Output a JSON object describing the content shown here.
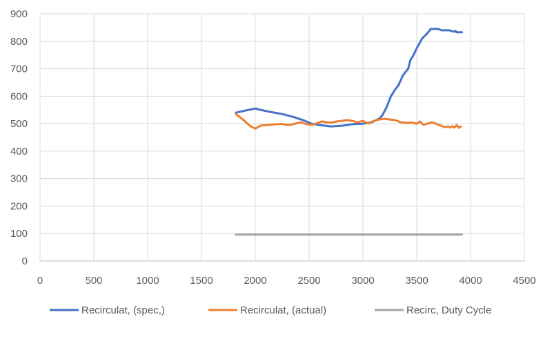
{
  "chart_data": {
    "type": "line",
    "title": "",
    "xlabel": "",
    "ylabel": "",
    "xlim": [
      0,
      4500
    ],
    "ylim": [
      0,
      900
    ],
    "x_ticks": [
      "0",
      "500",
      "1000",
      "1500",
      "2000",
      "2500",
      "3000",
      "3500",
      "4000",
      "4500"
    ],
    "y_ticks": [
      "0",
      "100",
      "200",
      "300",
      "400",
      "500",
      "600",
      "700",
      "800",
      "900"
    ],
    "grid": "vertical and horizontal",
    "legend_position": "bottom",
    "series": [
      {
        "name": "Recirculat, (spec,)",
        "color": "#4472c4",
        "points": [
          [
            1820,
            540
          ],
          [
            1900,
            547
          ],
          [
            2000,
            555
          ],
          [
            2050,
            550
          ],
          [
            2150,
            542
          ],
          [
            2250,
            535
          ],
          [
            2350,
            525
          ],
          [
            2450,
            512
          ],
          [
            2520,
            500
          ],
          [
            2600,
            495
          ],
          [
            2700,
            490
          ],
          [
            2800,
            492
          ],
          [
            2900,
            498
          ],
          [
            3000,
            500
          ],
          [
            3080,
            505
          ],
          [
            3150,
            518
          ],
          [
            3180,
            530
          ],
          [
            3220,
            560
          ],
          [
            3260,
            600
          ],
          [
            3300,
            625
          ],
          [
            3330,
            640
          ],
          [
            3370,
            675
          ],
          [
            3420,
            700
          ],
          [
            3440,
            730
          ],
          [
            3470,
            750
          ],
          [
            3500,
            775
          ],
          [
            3550,
            810
          ],
          [
            3600,
            830
          ],
          [
            3630,
            845
          ],
          [
            3700,
            845
          ],
          [
            3730,
            840
          ],
          [
            3800,
            840
          ],
          [
            3850,
            835
          ],
          [
            3860,
            838
          ],
          [
            3870,
            833
          ],
          [
            3920,
            833
          ]
        ]
      },
      {
        "name": "Recirculat, (actual)",
        "color": "#ed7d31",
        "points": [
          [
            1820,
            535
          ],
          [
            1900,
            510
          ],
          [
            1950,
            492
          ],
          [
            2000,
            482
          ],
          [
            2050,
            493
          ],
          [
            2100,
            495
          ],
          [
            2200,
            498
          ],
          [
            2250,
            499
          ],
          [
            2300,
            495
          ],
          [
            2350,
            498
          ],
          [
            2420,
            505
          ],
          [
            2480,
            498
          ],
          [
            2530,
            496
          ],
          [
            2580,
            503
          ],
          [
            2620,
            508
          ],
          [
            2660,
            505
          ],
          [
            2700,
            504
          ],
          [
            2760,
            508
          ],
          [
            2800,
            510
          ],
          [
            2850,
            513
          ],
          [
            2900,
            510
          ],
          [
            2950,
            505
          ],
          [
            3000,
            510
          ],
          [
            3050,
            500
          ],
          [
            3100,
            510
          ],
          [
            3150,
            515
          ],
          [
            3200,
            518
          ],
          [
            3250,
            515
          ],
          [
            3300,
            513
          ],
          [
            3350,
            505
          ],
          [
            3400,
            503
          ],
          [
            3450,
            504
          ],
          [
            3500,
            500
          ],
          [
            3530,
            508
          ],
          [
            3560,
            496
          ],
          [
            3600,
            500
          ],
          [
            3640,
            505
          ],
          [
            3680,
            500
          ],
          [
            3700,
            496
          ],
          [
            3730,
            492
          ],
          [
            3760,
            487
          ],
          [
            3790,
            490
          ],
          [
            3810,
            486
          ],
          [
            3830,
            491
          ],
          [
            3850,
            486
          ],
          [
            3870,
            495
          ],
          [
            3890,
            485
          ],
          [
            3910,
            490
          ]
        ]
      },
      {
        "name": "Recirc, Duty Cycle",
        "color": "#a5a5a5",
        "points": [
          [
            1820,
            96
          ],
          [
            3920,
            96
          ]
        ]
      }
    ]
  }
}
